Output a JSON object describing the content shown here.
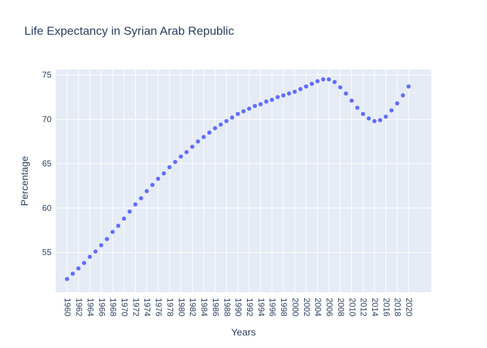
{
  "chart_data": {
    "type": "scatter",
    "title": "Life Expectancy in Syrian Arab Republic",
    "xlabel": "Years",
    "ylabel": "Percentage",
    "xlim": [
      1958,
      2024
    ],
    "ylim": [
      50.5,
      75.6
    ],
    "grid": true,
    "marker_color": "#636efa",
    "plot_bg": "#e5ecf6",
    "x_ticks": [
      1960,
      1962,
      1964,
      1966,
      1968,
      1970,
      1972,
      1974,
      1976,
      1978,
      1980,
      1982,
      1984,
      1986,
      1988,
      1990,
      1992,
      1994,
      1996,
      1998,
      2000,
      2002,
      2004,
      2006,
      2008,
      2010,
      2012,
      2014,
      2016,
      2018,
      2020
    ],
    "y_ticks": [
      55,
      60,
      65,
      70,
      75
    ],
    "x": [
      1960,
      1961,
      1962,
      1963,
      1964,
      1965,
      1966,
      1967,
      1968,
      1969,
      1970,
      1971,
      1972,
      1973,
      1974,
      1975,
      1976,
      1977,
      1978,
      1979,
      1980,
      1981,
      1982,
      1983,
      1984,
      1985,
      1986,
      1987,
      1988,
      1989,
      1990,
      1991,
      1992,
      1993,
      1994,
      1995,
      1996,
      1997,
      1998,
      1999,
      2000,
      2001,
      2002,
      2003,
      2004,
      2005,
      2006,
      2007,
      2008,
      2009,
      2010,
      2011,
      2012,
      2013,
      2014,
      2015,
      2016,
      2017,
      2018,
      2019,
      2020
    ],
    "y": [
      52.0,
      52.6,
      53.2,
      53.8,
      54.5,
      55.1,
      55.8,
      56.5,
      57.3,
      58.0,
      58.8,
      59.6,
      60.4,
      61.1,
      61.9,
      62.6,
      63.3,
      63.9,
      64.6,
      65.2,
      65.8,
      66.3,
      66.9,
      67.5,
      68.0,
      68.5,
      69.0,
      69.4,
      69.8,
      70.2,
      70.6,
      70.9,
      71.2,
      71.5,
      71.7,
      72.0,
      72.2,
      72.5,
      72.7,
      72.9,
      73.1,
      73.4,
      73.7,
      74.0,
      74.3,
      74.5,
      74.5,
      74.2,
      73.6,
      72.9,
      72.1,
      71.3,
      70.6,
      70.1,
      69.8,
      69.9,
      70.3,
      71.0,
      71.8,
      72.7,
      73.7
    ]
  }
}
